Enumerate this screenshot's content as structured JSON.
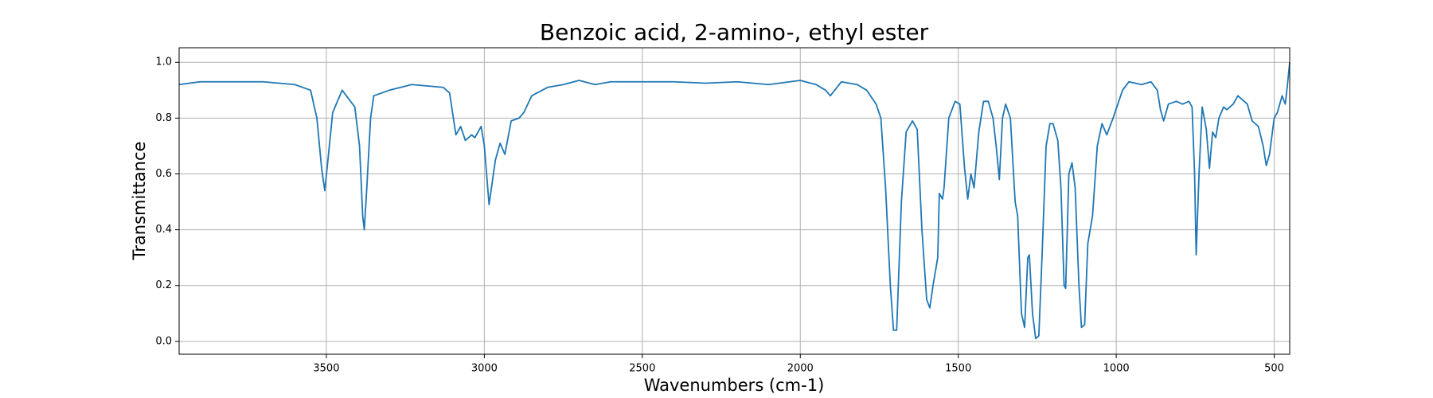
{
  "chart_data": {
    "type": "line",
    "title": "Benzoic acid, 2-amino-, ethyl ester",
    "x_label": "Wavenumbers (cm-1)",
    "y_label": "Transmittance",
    "xlim": [
      3966,
      451
    ],
    "ylim": [
      -0.046,
      1.052
    ],
    "xticks": [
      3500,
      3000,
      2500,
      2000,
      1500,
      1000,
      500
    ],
    "yticks": [
      {
        "value": 0,
        "label": "0.0"
      },
      {
        "value": 0.2,
        "label": "0.2"
      },
      {
        "value": 0.4,
        "label": "0.4"
      },
      {
        "value": 0.6,
        "label": "0.6"
      },
      {
        "value": 0.8,
        "label": "0.8"
      },
      {
        "value": 1,
        "label": "1.0"
      }
    ],
    "grid": true,
    "series": [
      {
        "color": "#1f77b4",
        "x": [
          3966,
          3900,
          3800,
          3700,
          3600,
          3550,
          3530,
          3515,
          3505,
          3495,
          3480,
          3450,
          3430,
          3410,
          3395,
          3385,
          3380,
          3372,
          3360,
          3350,
          3300,
          3230,
          3130,
          3110,
          3090,
          3075,
          3060,
          3040,
          3030,
          3010,
          3000,
          2985,
          2965,
          2950,
          2935,
          2915,
          2890,
          2875,
          2850,
          2800,
          2750,
          2700,
          2650,
          2600,
          2400,
          2300,
          2200,
          2100,
          2000,
          1950,
          1920,
          1905,
          1870,
          1820,
          1790,
          1760,
          1745,
          1730,
          1715,
          1705,
          1695,
          1680,
          1665,
          1645,
          1630,
          1615,
          1600,
          1590,
          1580,
          1565,
          1560,
          1550,
          1545,
          1530,
          1510,
          1495,
          1480,
          1470,
          1460,
          1450,
          1435,
          1420,
          1405,
          1390,
          1380,
          1370,
          1360,
          1350,
          1335,
          1320,
          1312,
          1300,
          1290,
          1280,
          1275,
          1265,
          1255,
          1245,
          1235,
          1222,
          1210,
          1200,
          1185,
          1175,
          1165,
          1160,
          1150,
          1140,
          1130,
          1118,
          1110,
          1100,
          1090,
          1075,
          1060,
          1045,
          1030,
          1010,
          980,
          960,
          920,
          890,
          870,
          860,
          850,
          835,
          810,
          790,
          770,
          760,
          752,
          747,
          738,
          728,
          715,
          705,
          695,
          685,
          675,
          660,
          650,
          630,
          615,
          595,
          585,
          570,
          550,
          535,
          525,
          515,
          500,
          490,
          475,
          465,
          458,
          451
        ],
        "values": [
          0.92,
          0.93,
          0.93,
          0.93,
          0.92,
          0.9,
          0.8,
          0.62,
          0.54,
          0.65,
          0.82,
          0.9,
          0.87,
          0.84,
          0.7,
          0.45,
          0.4,
          0.55,
          0.8,
          0.88,
          0.9,
          0.92,
          0.91,
          0.89,
          0.74,
          0.77,
          0.72,
          0.74,
          0.73,
          0.77,
          0.7,
          0.49,
          0.65,
          0.71,
          0.67,
          0.79,
          0.8,
          0.82,
          0.88,
          0.91,
          0.92,
          0.935,
          0.92,
          0.93,
          0.93,
          0.925,
          0.93,
          0.92,
          0.935,
          0.92,
          0.9,
          0.88,
          0.93,
          0.92,
          0.9,
          0.85,
          0.8,
          0.55,
          0.2,
          0.04,
          0.04,
          0.5,
          0.75,
          0.79,
          0.76,
          0.4,
          0.15,
          0.12,
          0.2,
          0.3,
          0.53,
          0.51,
          0.55,
          0.8,
          0.86,
          0.85,
          0.62,
          0.51,
          0.6,
          0.55,
          0.75,
          0.86,
          0.86,
          0.8,
          0.7,
          0.58,
          0.8,
          0.85,
          0.8,
          0.5,
          0.45,
          0.1,
          0.05,
          0.3,
          0.31,
          0.1,
          0.01,
          0.02,
          0.3,
          0.7,
          0.78,
          0.78,
          0.72,
          0.55,
          0.2,
          0.19,
          0.6,
          0.64,
          0.55,
          0.2,
          0.05,
          0.06,
          0.35,
          0.45,
          0.7,
          0.78,
          0.74,
          0.8,
          0.9,
          0.93,
          0.92,
          0.93,
          0.9,
          0.83,
          0.79,
          0.85,
          0.86,
          0.85,
          0.86,
          0.84,
          0.6,
          0.31,
          0.6,
          0.84,
          0.76,
          0.62,
          0.75,
          0.73,
          0.8,
          0.84,
          0.83,
          0.85,
          0.88,
          0.86,
          0.85,
          0.79,
          0.77,
          0.7,
          0.63,
          0.67,
          0.8,
          0.82,
          0.88,
          0.85,
          0.92,
          1.0
        ]
      }
    ]
  }
}
